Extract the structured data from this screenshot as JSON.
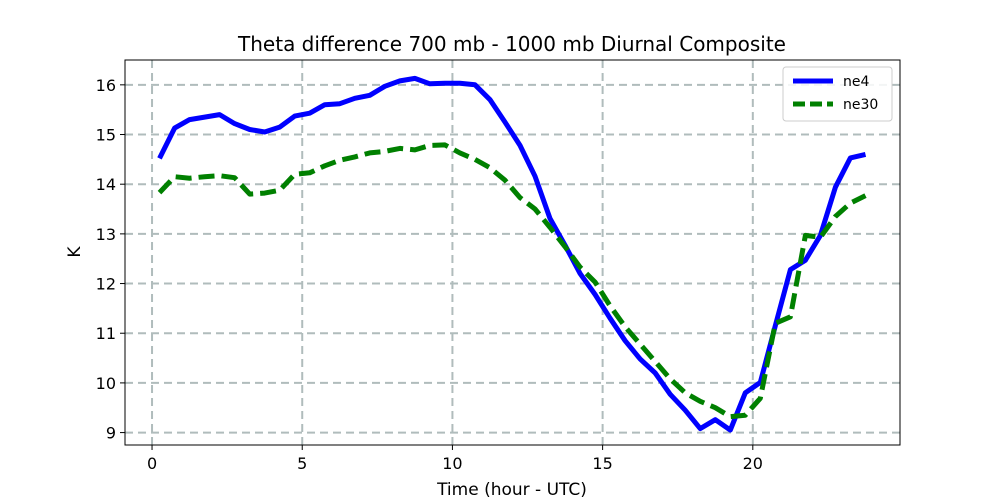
{
  "chart_data": {
    "type": "line",
    "title": "Theta difference 700 mb - 1000 mb Diurnal Composite",
    "xlabel": "Time (hour - UTC)",
    "ylabel": "K",
    "xlim": [
      -0.9,
      24.9
    ],
    "ylim": [
      8.75,
      16.5
    ],
    "xticks": [
      0,
      5,
      10,
      15,
      20
    ],
    "yticks": [
      9,
      10,
      11,
      12,
      13,
      14,
      15,
      16
    ],
    "grid": true,
    "legend_position": "top-right",
    "x": [
      0.25,
      0.75,
      1.25,
      1.75,
      2.25,
      2.75,
      3.25,
      3.75,
      4.25,
      4.75,
      5.25,
      5.75,
      6.25,
      6.75,
      7.25,
      7.75,
      8.25,
      8.75,
      9.25,
      9.75,
      10.25,
      10.75,
      11.25,
      11.75,
      12.25,
      12.75,
      13.25,
      13.75,
      14.25,
      14.75,
      15.25,
      15.75,
      16.25,
      16.75,
      17.25,
      17.75,
      18.25,
      18.75,
      19.25,
      19.75,
      20.25,
      20.75,
      21.25,
      21.75,
      22.25,
      22.75,
      23.25,
      23.75
    ],
    "series": [
      {
        "name": "ne4",
        "color": "#0000ff",
        "style": "solid",
        "values": [
          14.52,
          15.13,
          15.3,
          15.35,
          15.4,
          15.22,
          15.1,
          15.05,
          15.15,
          15.37,
          15.43,
          15.6,
          15.62,
          15.73,
          15.79,
          15.97,
          16.08,
          16.13,
          16.02,
          16.03,
          16.03,
          16.0,
          15.7,
          15.25,
          14.78,
          14.16,
          13.31,
          12.77,
          12.2,
          11.78,
          11.3,
          10.85,
          10.48,
          10.2,
          9.77,
          9.45,
          9.08,
          9.26,
          9.05,
          9.8,
          10.01,
          11.15,
          12.28,
          12.47,
          12.97,
          13.94,
          14.53,
          14.6
        ]
      },
      {
        "name": "ne30",
        "color": "#008000",
        "style": "dashed",
        "values": [
          13.83,
          14.15,
          14.12,
          14.15,
          14.17,
          14.13,
          13.8,
          13.82,
          13.88,
          14.2,
          14.23,
          14.37,
          14.48,
          14.55,
          14.63,
          14.66,
          14.72,
          14.69,
          14.78,
          14.79,
          14.63,
          14.5,
          14.33,
          14.08,
          13.73,
          13.5,
          13.13,
          12.74,
          12.33,
          12.03,
          11.55,
          11.13,
          10.78,
          10.43,
          10.08,
          9.8,
          9.63,
          9.5,
          9.32,
          9.35,
          9.69,
          11.2,
          11.33,
          12.97,
          12.93,
          13.35,
          13.62,
          13.77
        ]
      }
    ]
  }
}
